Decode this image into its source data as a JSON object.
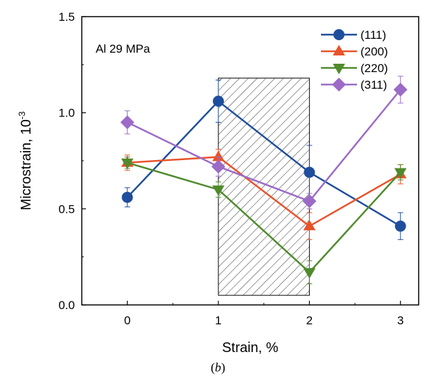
{
  "chart_data": {
    "type": "line",
    "xlabel": "Strain, %",
    "ylabel": "Microstrain, 10",
    "ylabel_superscript": "-3",
    "annotation": "Al 29 MPa",
    "xlim": [
      -0.5,
      3.2
    ],
    "ylim": [
      0.0,
      1.5
    ],
    "x_ticks": [
      "0",
      "1",
      "2",
      "3"
    ],
    "y_ticks": [
      "0.0",
      "0.5",
      "1.0",
      "1.5"
    ],
    "grid": false,
    "legend_position": "top-right",
    "shaded_region": {
      "x": [
        1,
        2
      ],
      "y": [
        0.05,
        1.18
      ],
      "pattern": "diagonal-hatch"
    },
    "x": [
      0,
      1,
      2,
      3
    ],
    "series": [
      {
        "name": "(111)",
        "color": "#1f4e9c",
        "marker": "circle",
        "values": [
          0.56,
          1.06,
          0.69,
          0.41
        ],
        "errors": [
          0.05,
          0.11,
          0.14,
          0.07
        ]
      },
      {
        "name": "(200)",
        "color": "#e8532a",
        "marker": "triangle-up",
        "values": [
          0.74,
          0.77,
          0.41,
          0.68
        ],
        "errors": [
          0.04,
          0.04,
          0.07,
          0.05
        ]
      },
      {
        "name": "(220)",
        "color": "#4f8a2c",
        "marker": "triangle-down",
        "values": [
          0.74,
          0.6,
          0.17,
          0.69
        ],
        "errors": [
          0.03,
          0.04,
          0.06,
          0.04
        ]
      },
      {
        "name": "(311)",
        "color": "#9b6bc7",
        "marker": "diamond",
        "values": [
          0.95,
          0.72,
          0.54,
          1.12
        ],
        "errors": [
          0.06,
          0.05,
          0.04,
          0.07
        ]
      }
    ]
  },
  "caption": {
    "open": "(",
    "letter": "b",
    "close": ")"
  }
}
